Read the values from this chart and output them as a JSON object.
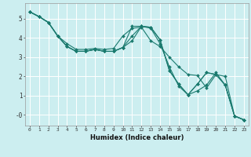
{
  "xlabel": "Humidex (Indice chaleur)",
  "background_color": "#cceef0",
  "grid_color": "#ffffff",
  "line_color": "#1a7a6e",
  "xlim": [
    -0.5,
    23.5
  ],
  "ylim": [
    -0.55,
    5.8
  ],
  "yticks": [
    0,
    1,
    2,
    3,
    4,
    5
  ],
  "ytick_labels": [
    "-0",
    "1",
    "2",
    "3",
    "4",
    "5"
  ],
  "xticks": [
    0,
    1,
    2,
    3,
    4,
    5,
    6,
    7,
    8,
    9,
    10,
    11,
    12,
    13,
    14,
    15,
    16,
    17,
    18,
    19,
    20,
    21,
    22,
    23
  ],
  "series": [
    [
      5.35,
      5.1,
      4.8,
      4.1,
      3.7,
      3.4,
      3.4,
      3.45,
      3.4,
      3.45,
      4.1,
      4.5,
      4.55,
      3.85,
      3.55,
      3.0,
      2.5,
      2.1,
      2.05,
      1.4,
      2.1,
      2.0,
      -0.05,
      -0.25
    ],
    [
      5.35,
      5.1,
      4.8,
      4.1,
      3.55,
      3.3,
      3.3,
      3.4,
      3.3,
      3.3,
      3.5,
      4.6,
      4.6,
      4.5,
      3.7,
      2.5,
      1.5,
      1.05,
      1.25,
      1.55,
      2.2,
      1.55,
      -0.05,
      -0.25
    ],
    [
      5.35,
      5.1,
      4.8,
      4.1,
      3.55,
      3.3,
      3.3,
      3.4,
      3.3,
      3.3,
      3.5,
      4.1,
      4.6,
      4.55,
      3.9,
      2.3,
      1.6,
      1.05,
      1.6,
      2.2,
      2.1,
      1.55,
      -0.05,
      -0.25
    ],
    [
      5.35,
      5.1,
      4.8,
      4.1,
      3.55,
      3.3,
      3.3,
      3.4,
      3.3,
      3.3,
      3.5,
      3.85,
      4.6,
      4.55,
      3.9,
      2.3,
      1.6,
      1.05,
      1.6,
      2.2,
      2.1,
      1.55,
      -0.05,
      -0.25
    ]
  ]
}
